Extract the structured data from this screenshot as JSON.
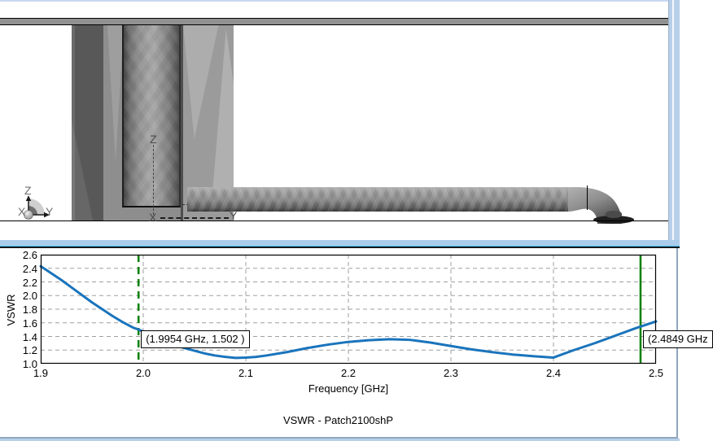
{
  "window": {
    "edge_color": "#b7cfe9",
    "accent_line_color": "#47c2f1"
  },
  "viewport3d": {
    "triad": {
      "z": "Z",
      "x": "X",
      "y": "Y"
    },
    "model_axes": {
      "z": "Z",
      "x": "X",
      "y": "Y"
    }
  },
  "chart_data": {
    "type": "line",
    "title": "VSWR - Patch2100shP",
    "xlabel": "Frequency [GHz]",
    "ylabel": "VSWR",
    "xlim": [
      1.9,
      2.5
    ],
    "ylim": [
      1.0,
      2.6
    ],
    "x_ticks": [
      1.9,
      2.0,
      2.1,
      2.2,
      2.3,
      2.4,
      2.5
    ],
    "y_ticks": [
      1.0,
      1.2,
      1.4,
      1.6,
      1.8,
      2.0,
      2.2,
      2.4,
      2.6
    ],
    "grid": "dashed-inner-gridlines",
    "legend": "none",
    "line_color": "#1a74bc",
    "grid_color": "#9f9f9f",
    "marker_color": "#008000",
    "series": [
      {
        "name": "VSWR",
        "points": [
          [
            1.9,
            2.43
          ],
          [
            1.905,
            2.38
          ],
          [
            1.91,
            2.33
          ],
          [
            1.92,
            2.23
          ],
          [
            1.93,
            2.12
          ],
          [
            1.94,
            2.01
          ],
          [
            1.95,
            1.9
          ],
          [
            1.96,
            1.8
          ],
          [
            1.97,
            1.7
          ],
          [
            1.98,
            1.61
          ],
          [
            1.99,
            1.53
          ],
          [
            1.9954,
            1.502
          ],
          [
            2.0,
            1.47
          ],
          [
            2.01,
            1.4
          ],
          [
            2.02,
            1.34
          ],
          [
            2.03,
            1.28
          ],
          [
            2.04,
            1.23
          ],
          [
            2.05,
            1.19
          ],
          [
            2.06,
            1.15
          ],
          [
            2.07,
            1.12
          ],
          [
            2.08,
            1.1
          ],
          [
            2.09,
            1.085
          ],
          [
            2.1,
            1.09
          ],
          [
            2.11,
            1.1
          ],
          [
            2.12,
            1.12
          ],
          [
            2.14,
            1.17
          ],
          [
            2.16,
            1.23
          ],
          [
            2.18,
            1.28
          ],
          [
            2.2,
            1.32
          ],
          [
            2.22,
            1.345
          ],
          [
            2.24,
            1.36
          ],
          [
            2.26,
            1.35
          ],
          [
            2.28,
            1.31
          ],
          [
            2.3,
            1.26
          ],
          [
            2.32,
            1.21
          ],
          [
            2.34,
            1.17
          ],
          [
            2.36,
            1.135
          ],
          [
            2.38,
            1.11
          ],
          [
            2.4,
            1.09
          ],
          [
            2.42,
            1.2
          ],
          [
            2.44,
            1.3
          ],
          [
            2.46,
            1.41
          ],
          [
            2.48,
            1.52
          ],
          [
            2.5,
            1.62
          ]
        ]
      }
    ],
    "markers": [
      {
        "freq": 1.9954,
        "style": "dashed",
        "label": "(1.9954 GHz, 1.502 )"
      },
      {
        "freq": 2.4849,
        "style": "solid",
        "label": "(2.4849 GHz"
      }
    ]
  }
}
